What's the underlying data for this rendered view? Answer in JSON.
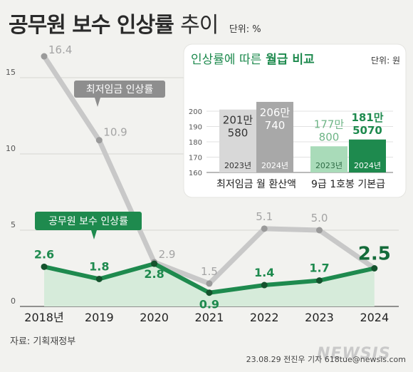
{
  "header": {
    "title_main": "공무원 보수 인상률",
    "title_suffix": "추이",
    "unit": "단위: %"
  },
  "chart_data": [
    {
      "type": "line",
      "categories": [
        "2018년",
        "2019",
        "2020",
        "2021",
        "2022",
        "2023",
        "2024"
      ],
      "y_ticks": [
        "0",
        "5",
        "10",
        "15"
      ],
      "ylim": [
        0,
        17.5
      ],
      "series": [
        {
          "name": "최저임금 인상률",
          "values": [
            16.4,
            10.9,
            2.9,
            1.5,
            5.1,
            5.0,
            2.5
          ],
          "labels": [
            "16.4",
            "10.9",
            "2.9",
            "1.5",
            "5.1",
            "5.0",
            ""
          ],
          "color": "#c8c8c8"
        },
        {
          "name": "공무원 보수 인상률",
          "values": [
            2.6,
            1.8,
            2.8,
            0.9,
            1.4,
            1.7,
            2.5
          ],
          "labels": [
            "2.6",
            "1.8",
            "2.8",
            "0.9",
            "1.4",
            "1.7",
            "2.5"
          ],
          "color": "#1e8a4e"
        }
      ]
    },
    {
      "type": "bar",
      "title_a": "인상률에 따른",
      "title_b": "월급 비교",
      "unit": "단위: 원",
      "y_ticks": [
        "160",
        "170",
        "180",
        "190",
        "200"
      ],
      "ylim": [
        160,
        205
      ],
      "groups": [
        {
          "label": "최저임금 월 환산액",
          "bars": [
            {
              "year": "2023년",
              "value": 201.058,
              "label_top": "201만",
              "label_bottom": "580",
              "color": "#d8d8d8",
              "text_color": "#333333"
            },
            {
              "year": "2024년",
              "value": 206.074,
              "label_top": "206만",
              "label_bottom": "740",
              "color": "#a8a8a8",
              "text_color": "#ffffff"
            }
          ]
        },
        {
          "label": "9급 1호봉 기본급",
          "bars": [
            {
              "year": "2023년",
              "value": 177.08,
              "label_top": "177만",
              "label_bottom": "800",
              "color": "#a9dbb9",
              "text_color": "#6fb587"
            },
            {
              "year": "2024년",
              "value": 181.507,
              "label_top": "181만",
              "label_bottom": "5070",
              "color": "#1e8a4e",
              "text_color": "#1e8a4e"
            }
          ]
        }
      ]
    }
  ],
  "footer": {
    "source": "자료: 기획재정부",
    "credit": "23.08.29 전진우 기자 618tue@newsis.com",
    "watermark": "NEWSIS"
  }
}
